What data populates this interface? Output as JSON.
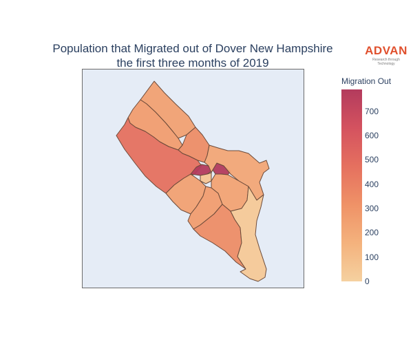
{
  "title": {
    "line1": "Population that Migrated out of Dover New Hampshire",
    "line2": "the first three months of 2019"
  },
  "logo": {
    "text": "ADVAN",
    "tagline": "Research through Technology"
  },
  "legend": {
    "title": "Migration Out",
    "ticks": [
      "700",
      "600",
      "500",
      "400",
      "300",
      "200",
      "100",
      "0"
    ],
    "range": [
      0,
      790
    ],
    "colors": [
      "#f5d1a0",
      "#f4b27d",
      "#ef9267",
      "#e5705f",
      "#d4525f",
      "#b33b5d"
    ]
  },
  "map": {
    "background": "#e5ecf6",
    "regions": [
      {
        "name": "north-tip",
        "value": 240
      },
      {
        "name": "north-central",
        "value": 260
      },
      {
        "name": "north-east-strip",
        "value": 340
      },
      {
        "name": "west-large",
        "value": 470
      },
      {
        "name": "center-left-small",
        "value": 790
      },
      {
        "name": "center-right-small",
        "value": 790
      },
      {
        "name": "center-cutout",
        "value": 60
      },
      {
        "name": "east-northeast",
        "value": 210
      },
      {
        "name": "east-mid",
        "value": 230
      },
      {
        "name": "southwest",
        "value": 240
      },
      {
        "name": "south-middle",
        "value": 260
      },
      {
        "name": "south-big",
        "value": 340
      },
      {
        "name": "southeast-long",
        "value": 40
      }
    ]
  }
}
